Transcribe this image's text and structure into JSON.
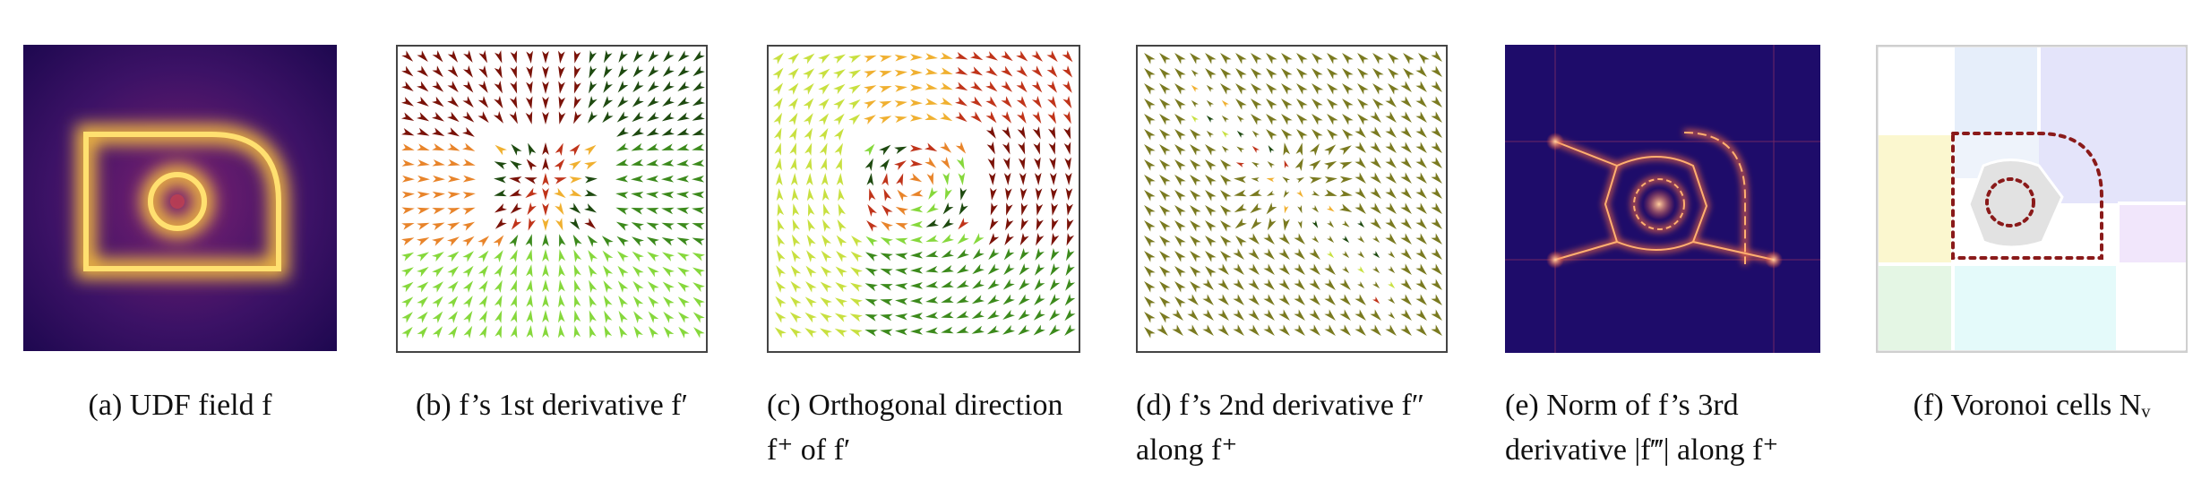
{
  "figure": {
    "panels": [
      {
        "id": "a",
        "caption": "(a) UDF field f",
        "kind": "scalar-field-glow"
      },
      {
        "id": "b",
        "caption": "(b) f’s 1st derivative f′",
        "kind": "arrow-field"
      },
      {
        "id": "c",
        "caption": "(c) Orthogonal direction f⁺ of f′",
        "kind": "arrow-field"
      },
      {
        "id": "d",
        "caption": "(d) f’s 2nd derivative f″ along f⁺",
        "kind": "arrow-field"
      },
      {
        "id": "e",
        "caption": "(e) Norm of f’s 3rd derivative |f‴| along f⁺",
        "kind": "dark-field"
      },
      {
        "id": "f",
        "caption": "(f) Voronoi cells Nᵥ",
        "kind": "voronoi"
      }
    ]
  },
  "colors": {
    "udf_dark": "#2a0a5e",
    "udf_glow": "#f5c542",
    "arrow_palette": [
      "#7a1208",
      "#c0341a",
      "#e8842a",
      "#f0b030",
      "#c8e040",
      "#86d83c",
      "#3c8a1c",
      "#1e4a10",
      "#7a7a20"
    ],
    "norm_bg": "#1c0a66",
    "norm_line": "#e0603a",
    "voronoi_outline": "#8a1a1a"
  }
}
